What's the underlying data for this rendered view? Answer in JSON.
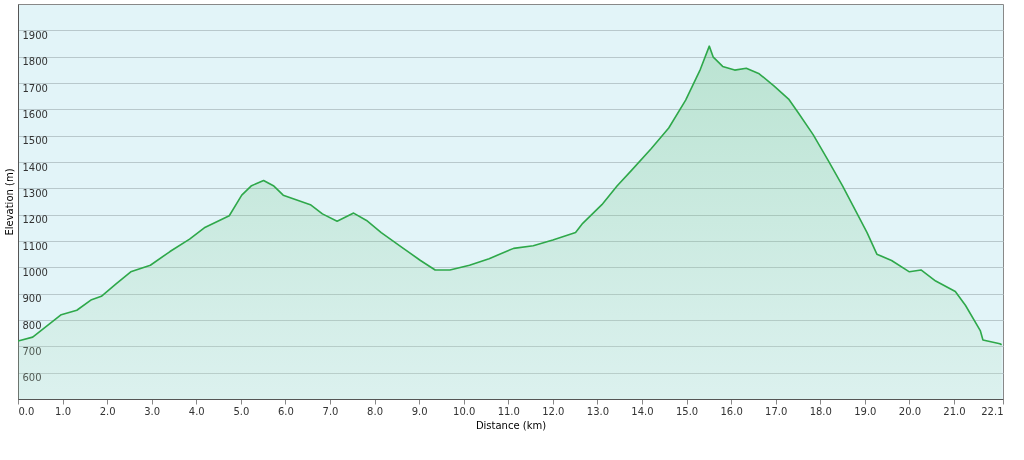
{
  "chart_data": {
    "type": "area",
    "xlabel": "Distance  (km)",
    "ylabel": "Elevation (m)",
    "x": [
      0.0,
      0.33,
      0.97,
      1.32,
      1.65,
      1.87,
      2.2,
      2.53,
      2.97,
      3.41,
      3.85,
      4.18,
      4.74,
      5.02,
      5.24,
      5.51,
      5.73,
      5.95,
      6.56,
      6.83,
      7.16,
      7.53,
      7.82,
      8.15,
      8.59,
      9.03,
      9.36,
      9.69,
      10.13,
      10.57,
      11.12,
      11.56,
      12.0,
      12.51,
      12.67,
      13.1,
      13.44,
      13.77,
      14.21,
      14.6,
      14.98,
      15.31,
      15.51,
      15.6,
      15.81,
      16.08,
      16.34,
      16.63,
      16.96,
      17.29,
      17.51,
      17.84,
      18.17,
      18.5,
      18.83,
      19.05,
      19.27,
      19.6,
      20.0,
      20.26,
      20.59,
      21.03,
      21.26,
      21.59,
      21.65,
      22.03,
      22.07
    ],
    "series": [
      {
        "color": "#2ea84a",
        "values": [
          720,
          735,
          820,
          837,
          877,
          890,
          937,
          983,
          1008,
          1060,
          1107,
          1150,
          1196,
          1274,
          1310,
          1330,
          1310,
          1274,
          1238,
          1203,
          1175,
          1206,
          1178,
          1132,
          1079,
          1026,
          990,
          990,
          1008,
          1033,
          1072,
          1082,
          1104,
          1132,
          1167,
          1238,
          1309,
          1369,
          1451,
          1529,
          1635,
          1752,
          1840,
          1798,
          1763,
          1749,
          1756,
          1735,
          1689,
          1639,
          1586,
          1504,
          1408,
          1309,
          1203,
          1132,
          1050,
          1026,
          983,
          990,
          948,
          908,
          855,
          760,
          724,
          710,
          706
        ]
      }
    ],
    "xlim": [
      0,
      22.1
    ],
    "xticks": [
      {
        "value": 0,
        "label": "0.0"
      },
      {
        "value": 1,
        "label": "1.0"
      },
      {
        "value": 2,
        "label": "2.0"
      },
      {
        "value": 3,
        "label": "3.0"
      },
      {
        "value": 4,
        "label": "4.0"
      },
      {
        "value": 5,
        "label": "5.0"
      },
      {
        "value": 6,
        "label": "6.0"
      },
      {
        "value": 7,
        "label": "7.0"
      },
      {
        "value": 8,
        "label": "8.0"
      },
      {
        "value": 9,
        "label": "9.0"
      },
      {
        "value": 10,
        "label": "10.0"
      },
      {
        "value": 11,
        "label": "11.0"
      },
      {
        "value": 12,
        "label": "12.0"
      },
      {
        "value": 13,
        "label": "13.0"
      },
      {
        "value": 14,
        "label": "14.0"
      },
      {
        "value": 15,
        "label": "15.0"
      },
      {
        "value": 16,
        "label": "16.0"
      },
      {
        "value": 17,
        "label": "17.0"
      },
      {
        "value": 18,
        "label": "18.0"
      },
      {
        "value": 19,
        "label": "19.0"
      },
      {
        "value": 20,
        "label": "20.0"
      },
      {
        "value": 21,
        "label": "21.0"
      },
      {
        "value": 22.1,
        "label": "22.1"
      }
    ],
    "ylim": [
      500,
      2000
    ],
    "yticks": [
      600,
      700,
      800,
      900,
      1000,
      1100,
      1200,
      1300,
      1400,
      1500,
      1600,
      1700,
      1800,
      1900
    ],
    "grid": "y",
    "marker": "none",
    "line_style": "solid"
  }
}
